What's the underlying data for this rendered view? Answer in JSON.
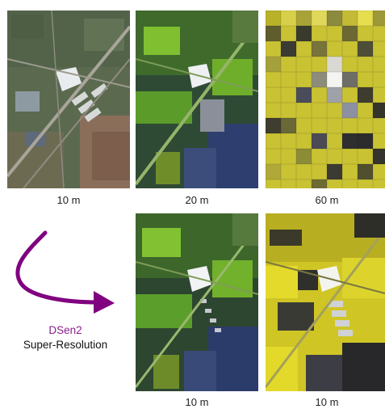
{
  "tiles": {
    "top_left": {
      "caption": "10 m"
    },
    "top_middle": {
      "caption": "20 m"
    },
    "top_right": {
      "caption": "60 m"
    },
    "bottom_middle": {
      "caption": "10 m"
    },
    "bottom_right": {
      "caption": "10 m"
    }
  },
  "method": {
    "name": "DSen2",
    "description": "Super-Resolution"
  },
  "colors": {
    "arrow": "#800080",
    "method_name": "#8b1c8b"
  }
}
